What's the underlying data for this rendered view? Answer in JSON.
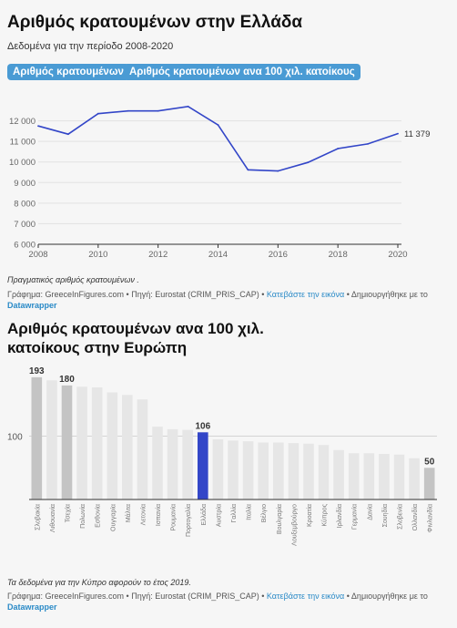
{
  "chart1": {
    "title": "Αριθμός κρατουμένων στην Ελλάδα",
    "subtitle": "Δεδομένα για την περίοδο 2008-2020",
    "buttons": [
      "Αριθμός κρατουμένων",
      "Αριθμός κρατουμένων ανα 100 χιλ. κατοίκους"
    ],
    "note": "Πραγματικός αριθμός κρατουμένων .",
    "credit_prefix": "Γράφημα: GreeceInFigures.com • Πηγή: Eurostat (CRIM_PRIS_CAP) •",
    "credit_link": "Κατεβάστε την εικόνα",
    "credit_mid": "• Δημιουργήθηκε με το",
    "credit_tool": "Datawrapper",
    "end_label": "11 379"
  },
  "chart2": {
    "title": "Αριθμός κρατουμένων ανα 100 χιλ. κατοίκους στην Ευρώπη",
    "note": "Τα δεδομένα για την Κύπρο αφορούν το έτος 2019.",
    "credit_prefix": "Γράφημα: GreeceInFigures.com • Πηγή: Eurostat (CRIM_PRIS_CAP) •",
    "credit_link": "Κατεβάστε την εικόνα",
    "credit_mid": "• Δημιουργήθηκε με το",
    "credit_tool": "Datawrapper",
    "ref_label": "100"
  },
  "chart_data": [
    {
      "type": "line",
      "title": "Αριθμός κρατουμένων στην Ελλάδα",
      "x": [
        2008,
        2009,
        2010,
        2011,
        2012,
        2013,
        2014,
        2015,
        2016,
        2017,
        2018,
        2019,
        2020
      ],
      "y": [
        11750,
        11350,
        12350,
        12480,
        12480,
        12700,
        11800,
        9620,
        9560,
        9980,
        10650,
        10880,
        11379
      ],
      "xticks": [
        "2008",
        "2010",
        "2012",
        "2014",
        "2016",
        "2018",
        "2020"
      ],
      "yticks": [
        "6 000",
        "7 000",
        "8 000",
        "9 000",
        "10 000",
        "11 000",
        "12 000"
      ],
      "xlim": [
        2008,
        2020
      ],
      "ylim": [
        6000,
        13000
      ],
      "color": "#3346c8"
    },
    {
      "type": "bar",
      "title": "Αριθμός κρατουμένων ανα 100 χιλ. κατοίκους στην Ευρώπη",
      "categories": [
        "Σλοβακία",
        "Λιθουανία",
        "Τσεχία",
        "Πολωνία",
        "Εσθονία",
        "Ουγγαρία",
        "Μάλτα",
        "Λετονία",
        "Ισπανία",
        "Ρουμανία",
        "Πορτογαλία",
        "Ελλάδα",
        "Αυστρία",
        "Γαλλία",
        "Ιταλία",
        "Βέλγιο",
        "Βουλγαρία",
        "Λουξεμβούργο",
        "Κροατία",
        "Κύπρος",
        "Ιρλανδία",
        "Γερμανία",
        "Δανία",
        "Σουηδία",
        "Σλοβενία",
        "Ολλανδία",
        "Φινλανδία"
      ],
      "values": [
        193,
        188,
        180,
        178,
        177,
        169,
        165,
        158,
        115,
        111,
        110,
        106,
        95,
        93,
        92,
        90,
        90,
        89,
        88,
        86,
        78,
        73,
        73,
        72,
        71,
        65,
        50
      ],
      "labeled": {
        "0": "193",
        "2": "180",
        "11": "106",
        "26": "50"
      },
      "ylim": [
        0,
        200
      ],
      "reference_line": 100,
      "colors": {
        "default": "#e6e6e6",
        "labeled": "#c4c4c4",
        "highlight": "#3346c8"
      }
    }
  ]
}
